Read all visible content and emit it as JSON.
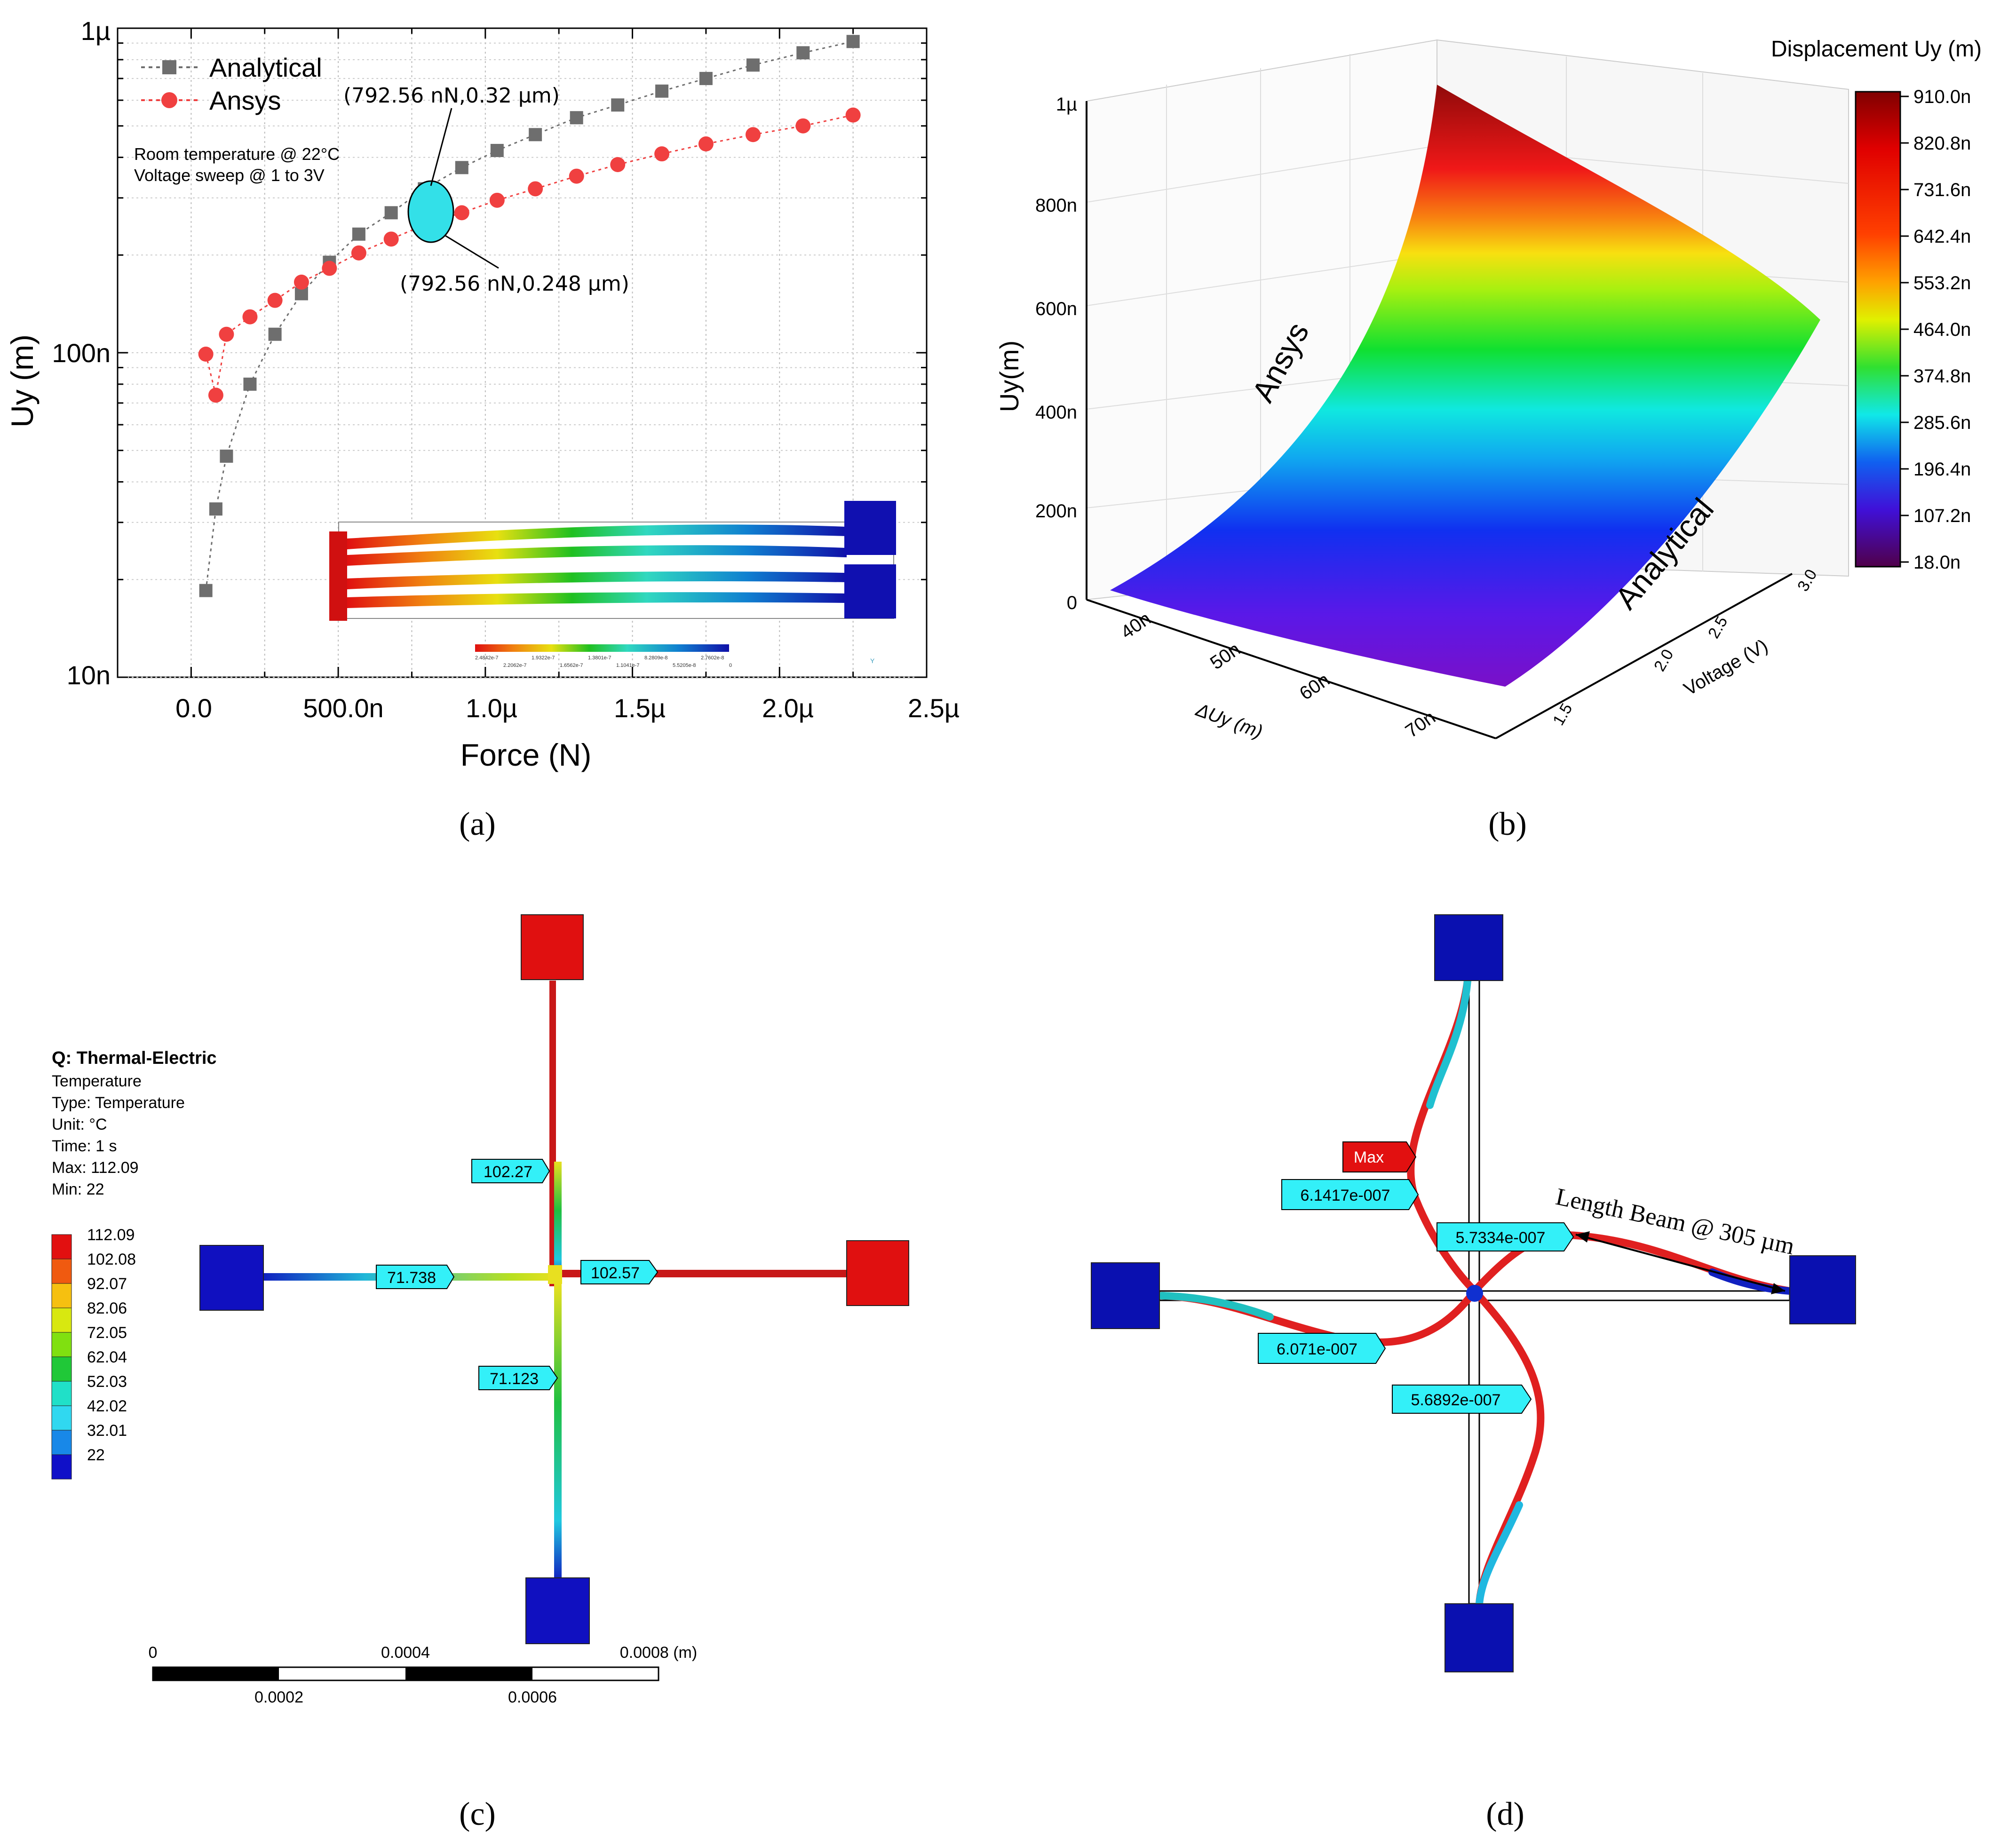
{
  "panel_labels": [
    "(a)",
    "(b)",
    "(c)",
    "(d)"
  ],
  "colors": {
    "analytical": "#6e6e6e",
    "ansys": "#f04040",
    "highlight": "#33e0e8",
    "ansys_red": "#e01010",
    "ansys_blue": "#0a10b0",
    "tag_cyan": "#33f0f8"
  },
  "chart_data": [
    {
      "type": "scatter",
      "panel": "(a)",
      "xlabel": "Force (N)",
      "ylabel": "Uy (m)",
      "xlim": [
        -2.5e-07,
        2.5e-06
      ],
      "ylim": [
        1e-08,
        1e-06
      ],
      "yscale": "log",
      "grid": true,
      "legend": "top-left",
      "xticks": [
        "0.0",
        "500.0n",
        "1.0µ",
        "1.5µ",
        "2.0µ",
        "2.5µ"
      ],
      "yticks": [
        "10n",
        "100n",
        "1µ"
      ],
      "series": [
        {
          "name": "Analytical",
          "marker": "square",
          "x": [
            5e-08,
            8.4e-08,
            1.2e-07,
            2e-07,
            2.85e-07,
            3.75e-07,
            4.7e-07,
            5.7e-07,
            6.8e-07,
            7.93e-07,
            9.2e-07,
            1.04e-06,
            1.17e-06,
            1.31e-06,
            1.45e-06,
            1.6e-06,
            1.75e-06,
            1.91e-06,
            2.08e-06,
            2.25e-06
          ],
          "y": [
            1.85e-08,
            3.3e-08,
            4.8e-08,
            8e-08,
            1.14e-07,
            1.52e-07,
            1.9e-07,
            2.32e-07,
            2.7e-07,
            3.2e-07,
            3.72e-07,
            4.2e-07,
            4.7e-07,
            5.3e-07,
            5.8e-07,
            6.4e-07,
            7e-07,
            7.7e-07,
            8.4e-07,
            9.1e-07
          ]
        },
        {
          "name": "Ansys",
          "marker": "circle",
          "x": [
            5e-08,
            8.4e-08,
            1.2e-07,
            2e-07,
            2.85e-07,
            3.75e-07,
            4.7e-07,
            5.7e-07,
            6.8e-07,
            7.93e-07,
            9.2e-07,
            1.04e-06,
            1.17e-06,
            1.31e-06,
            1.45e-06,
            1.6e-06,
            1.75e-06,
            1.91e-06,
            2.08e-06,
            2.25e-06
          ],
          "y": [
            9.9e-08,
            7.4e-08,
            1.14e-07,
            1.29e-07,
            1.45e-07,
            1.65e-07,
            1.82e-07,
            2.03e-07,
            2.24e-07,
            2.48e-07,
            2.7e-07,
            2.95e-07,
            3.2e-07,
            3.5e-07,
            3.8e-07,
            4.1e-07,
            4.4e-07,
            4.7e-07,
            5e-07,
            5.4e-07
          ]
        }
      ],
      "annotations": [
        "(792.56 nN,0.32 µm)",
        "(792.56 nN,0.248 µm)",
        "Room temperature @ 22°C",
        "Voltage sweep @ 1 to 3V"
      ],
      "inset_colorbar_labels": [
        "2.4842e-7",
        "2.2062e-7",
        "1.9322e-7",
        "1.6562e-7",
        "1.3801e-7",
        "1.1041e-7",
        "8.2809e-8",
        "5.5205e-8",
        "2.7602e-8",
        "0",
        "Y"
      ]
    },
    {
      "type": "area",
      "panel": "(b)",
      "zlabel": "Uy(m)",
      "xlabel": "ΔUy (m)",
      "ylabel": "Voltage (V)",
      "zticks": [
        "0",
        "200n",
        "400n",
        "600n",
        "800n",
        "1µ"
      ],
      "xticks": [
        "40n",
        "50n",
        "60n",
        "70n"
      ],
      "yticks": [
        "1.5",
        "2.0",
        "2.5",
        "3.0"
      ],
      "surface_labels": [
        "Ansys",
        "Analytical"
      ],
      "colorbar_title": "Displacement Uy (m)",
      "colorbar_ticks": [
        "910.0n",
        "820.8n",
        "731.6n",
        "642.4n",
        "553.2n",
        "464.0n",
        "374.8n",
        "285.6n",
        "196.4n",
        "107.2n",
        "18.0n"
      ]
    }
  ],
  "panel_c": {
    "legend_title": "Q: Thermal-Electric",
    "legend_lines": [
      "Temperature",
      "Type: Temperature",
      "Unit: °C",
      "Time: 1 s",
      "Max: 112.09",
      "Min: 22"
    ],
    "colorbar_values": [
      "112.09",
      "102.08",
      "92.07",
      "82.06",
      "72.05",
      "62.04",
      "52.03",
      "42.02",
      "32.01",
      "22"
    ],
    "colorbar_colors": [
      "#e21010",
      "#f05a10",
      "#f6c010",
      "#d8e810",
      "#80e010",
      "#20c838",
      "#20e0c8",
      "#30d8f0",
      "#1888e8",
      "#1010c8"
    ],
    "probes": [
      "102.27",
      "71.738",
      "102.57",
      "71.123"
    ],
    "scale_top": [
      "0",
      "0.0004",
      "0.0008 (m)"
    ],
    "scale_bottom": [
      "0.0002",
      "0.0006"
    ]
  },
  "panel_d": {
    "max_label": "Max",
    "probes": [
      "6.1417e-007",
      "5.7334e-007",
      "6.071e-007",
      "5.6892e-007"
    ],
    "dimension_label": "Length Beam @ 305 µm"
  }
}
